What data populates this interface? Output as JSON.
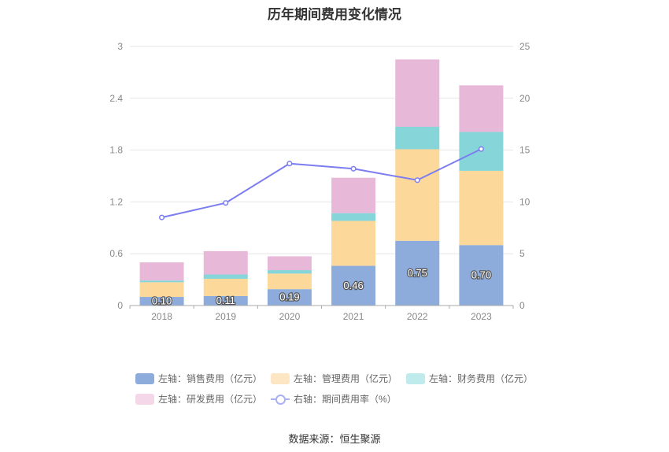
{
  "title": "历年期间费用变化情况",
  "source": "数据来源：恒生聚源",
  "chart_data": {
    "type": "bar",
    "stacked": true,
    "categories": [
      "2018",
      "2019",
      "2020",
      "2021",
      "2022",
      "2023"
    ],
    "left_axis": {
      "ylim": [
        0,
        3
      ],
      "ticks": [
        "0",
        "0.6",
        "1.2",
        "1.8",
        "2.4",
        "3"
      ]
    },
    "right_axis": {
      "ylim": [
        0,
        25
      ],
      "ticks": [
        "0",
        "5",
        "10",
        "15",
        "20",
        "25"
      ]
    },
    "series": [
      {
        "name": "左轴：销售费用（亿元）",
        "axis": "left",
        "type": "bar",
        "color": "#8eacdb",
        "values": [
          0.1,
          0.11,
          0.19,
          0.46,
          0.75,
          0.7
        ],
        "labels": [
          "0.10",
          "0.11",
          "0.19",
          "0.46",
          "0.75",
          "0.70"
        ]
      },
      {
        "name": "左轴：管理费用（亿元）",
        "axis": "left",
        "type": "bar",
        "color": "#fdd89b",
        "values": [
          0.17,
          0.2,
          0.18,
          0.52,
          1.06,
          0.86
        ]
      },
      {
        "name": "左轴：财务费用（亿元）",
        "axis": "left",
        "type": "bar",
        "color": "#86d5d9",
        "values": [
          0.02,
          0.05,
          0.04,
          0.09,
          0.26,
          0.45
        ]
      },
      {
        "name": "左轴：研发费用（亿元）",
        "axis": "left",
        "type": "bar",
        "color": "#e8b8d9",
        "values": [
          0.21,
          0.27,
          0.16,
          0.41,
          0.78,
          0.54
        ]
      },
      {
        "name": "右轴：期间费用率（%）",
        "axis": "right",
        "type": "line",
        "color": "#7b7df0",
        "values": [
          8.5,
          9.9,
          13.7,
          13.2,
          12.1,
          15.1
        ]
      }
    ],
    "grid": true,
    "legend_position": "bottom"
  },
  "legend": [
    {
      "label": "左轴：销售费用（亿元）",
      "color": "#8eacdb",
      "kind": "bar"
    },
    {
      "label": "左轴：管理费用（亿元）",
      "color": "#fde6c4",
      "kind": "bar"
    },
    {
      "label": "左轴：财务费用（亿元）",
      "color": "#c0ebed",
      "kind": "bar"
    },
    {
      "label": "左轴：研发费用（亿元）",
      "color": "#f4d8ea",
      "kind": "bar"
    },
    {
      "label": "右轴：期间费用率（%）",
      "color": "#aab0f5",
      "kind": "line"
    }
  ]
}
